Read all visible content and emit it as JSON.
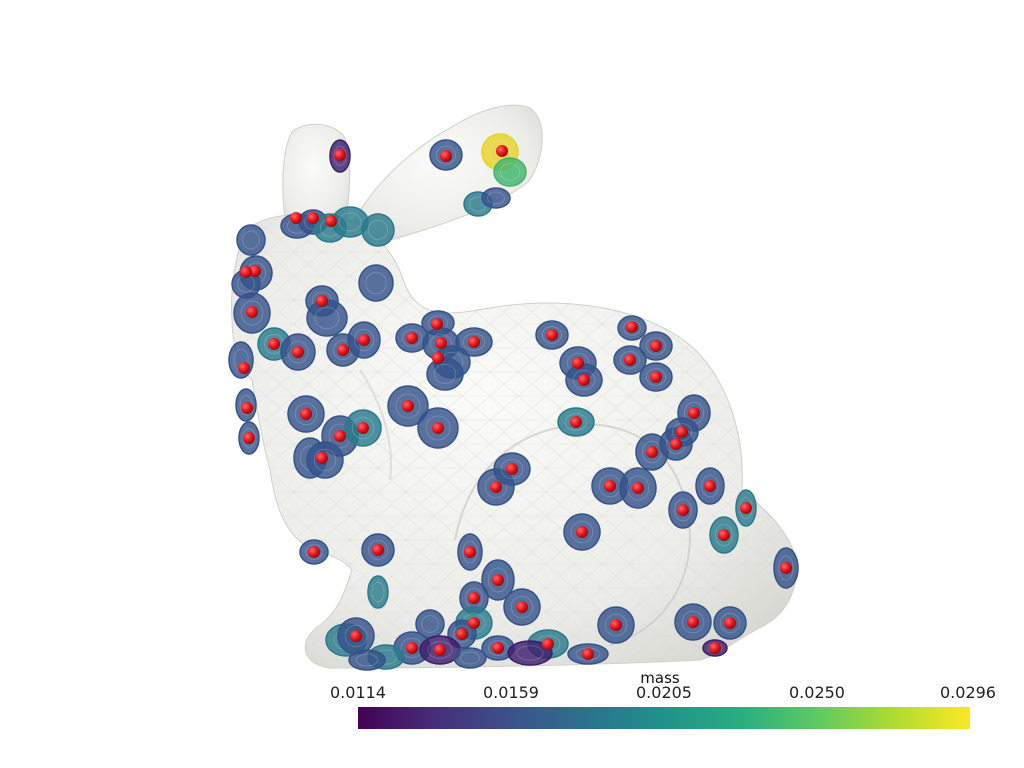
{
  "colorbar": {
    "title": "mass",
    "ticks": [
      "0.0114",
      "0.0159",
      "0.0205",
      "0.0250",
      "0.0296"
    ],
    "range": [
      0.0114,
      0.0296
    ],
    "colormap": "viridis",
    "colors": [
      "#440154",
      "#3b528b",
      "#21918c",
      "#5ec962",
      "#fde725"
    ]
  },
  "mesh": {
    "surface_color": "#ededea",
    "edge_color": "#cfcfcb"
  },
  "markers": {
    "point_color": "#e8161c",
    "glyph_shape": "disk"
  }
}
